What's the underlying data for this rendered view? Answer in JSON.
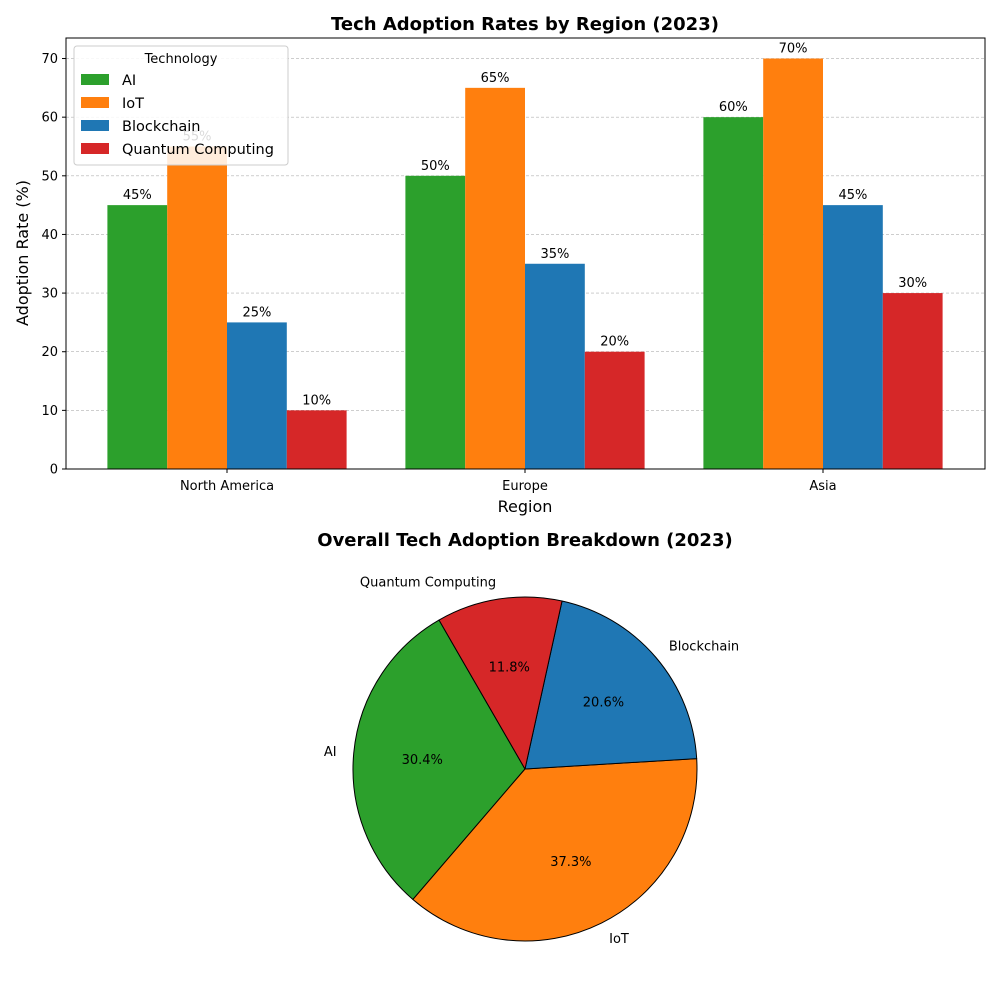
{
  "chart_data": [
    {
      "type": "bar",
      "title": "Tech Adoption Rates by Region (2023)",
      "xlabel": "Region",
      "ylabel": "Adoption Rate (%)",
      "ylim": [
        0,
        73.5
      ],
      "yticks": [
        0,
        10,
        20,
        30,
        40,
        50,
        60,
        70
      ],
      "grid": "horizontal dashed",
      "categories": [
        "North America",
        "Europe",
        "Asia"
      ],
      "series": [
        {
          "name": "AI",
          "color": "#2ca02c",
          "values": [
            45,
            50,
            60
          ],
          "labels": [
            "45%",
            "50%",
            "60%"
          ]
        },
        {
          "name": "IoT",
          "color": "#ff7f0e",
          "values": [
            55,
            65,
            70
          ],
          "labels": [
            "55%",
            "65%",
            "70%"
          ]
        },
        {
          "name": "Blockchain",
          "color": "#1f77b4",
          "values": [
            25,
            35,
            45
          ],
          "labels": [
            "25%",
            "35%",
            "45%"
          ]
        },
        {
          "name": "Quantum Computing",
          "color": "#d62728",
          "values": [
            10,
            20,
            30
          ],
          "labels": [
            "10%",
            "20%",
            "30%"
          ]
        }
      ],
      "legend": {
        "title": "Technology",
        "placement": "top-left"
      }
    },
    {
      "type": "pie",
      "title": "Overall Tech Adoption Breakdown (2023)",
      "slices": [
        {
          "label": "AI",
          "value": 30.4,
          "pct_label": "30.4%",
          "color": "#2ca02c"
        },
        {
          "label": "IoT",
          "value": 37.3,
          "pct_label": "37.3%",
          "color": "#ff7f0e"
        },
        {
          "label": "Blockchain",
          "value": 20.6,
          "pct_label": "20.6%",
          "color": "#1f77b4"
        },
        {
          "label": "Quantum Computing",
          "value": 11.8,
          "pct_label": "11.8%",
          "color": "#d62728"
        }
      ]
    }
  ]
}
